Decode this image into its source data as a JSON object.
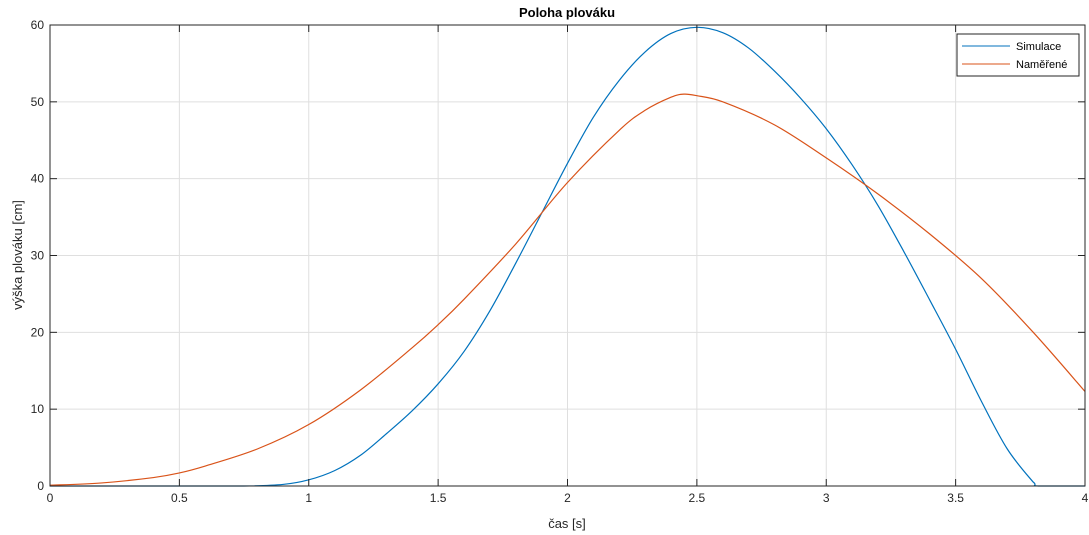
{
  "chart_data": {
    "type": "line",
    "title": "Poloha plováku",
    "xlabel": "čas [s]",
    "ylabel": "výška plováku [cm]",
    "xlim": [
      0,
      4
    ],
    "ylim": [
      0,
      60
    ],
    "xticks": [
      0,
      0.5,
      1,
      1.5,
      2,
      2.5,
      3,
      3.5,
      4
    ],
    "xtick_labels": [
      "0",
      "0.5",
      "1",
      "1.5",
      "2",
      "2.5",
      "3",
      "3.5",
      "4"
    ],
    "yticks": [
      0,
      10,
      20,
      30,
      40,
      50,
      60
    ],
    "ytick_labels": [
      "0",
      "10",
      "20",
      "30",
      "40",
      "50",
      "60"
    ],
    "grid": true,
    "legend_position": "top-right",
    "series": [
      {
        "name": "Simulace",
        "color": "#0072BD",
        "x": [
          0,
          0.5,
          0.75,
          0.9,
          1.0,
          1.1,
          1.2,
          1.3,
          1.4,
          1.5,
          1.6,
          1.7,
          1.8,
          1.9,
          2.0,
          2.1,
          2.2,
          2.3,
          2.4,
          2.5,
          2.6,
          2.7,
          2.8,
          2.9,
          3.0,
          3.1,
          3.2,
          3.3,
          3.4,
          3.5,
          3.6,
          3.7,
          3.8,
          3.82,
          4.0
        ],
        "y": [
          0,
          0,
          0,
          0.2,
          0.8,
          2.0,
          4.0,
          6.8,
          9.8,
          13.3,
          17.5,
          22.8,
          29.0,
          35.5,
          42.0,
          48.0,
          52.8,
          56.5,
          58.9,
          59.7,
          59.0,
          57.0,
          54.0,
          50.5,
          46.5,
          41.8,
          36.5,
          30.5,
          24.2,
          17.8,
          11.0,
          4.8,
          0.5,
          0,
          0
        ]
      },
      {
        "name": "Naměřené",
        "color": "#D95319",
        "x": [
          0,
          0.2,
          0.4,
          0.5,
          0.6,
          0.8,
          1.0,
          1.2,
          1.4,
          1.5,
          1.6,
          1.8,
          2.0,
          2.2,
          2.3,
          2.4,
          2.45,
          2.5,
          2.6,
          2.8,
          3.0,
          3.2,
          3.4,
          3.6,
          3.8,
          4.0
        ],
        "y": [
          0.1,
          0.4,
          1.1,
          1.7,
          2.6,
          4.8,
          8.0,
          12.5,
          18.0,
          21.0,
          24.3,
          31.5,
          39.5,
          46.3,
          48.9,
          50.6,
          51.0,
          50.8,
          50.0,
          47.0,
          42.7,
          38.0,
          32.8,
          27.0,
          20.0,
          12.3
        ]
      }
    ]
  }
}
